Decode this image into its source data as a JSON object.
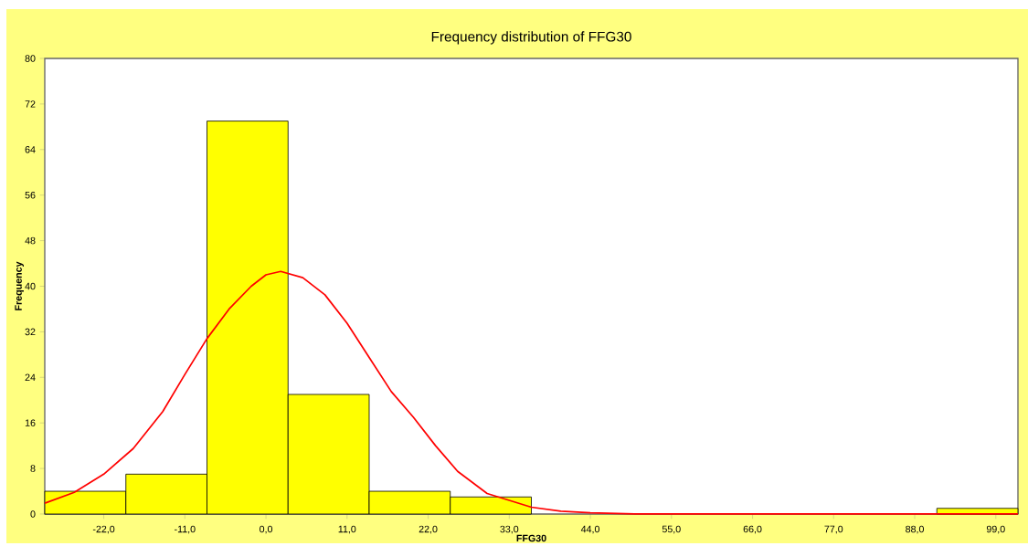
{
  "chart_data": {
    "type": "histogram",
    "title": "Frequency distribution of FFG30",
    "xlabel": "FFG30",
    "ylabel": "Frequency",
    "bins": [
      -30,
      -19,
      -8,
      3,
      14,
      25,
      36,
      47,
      58,
      69,
      80,
      91,
      102
    ],
    "values": [
      4,
      7,
      69,
      21,
      4,
      3,
      0,
      0,
      0,
      0,
      0,
      1
    ],
    "color": "#ffff00",
    "xlim": [
      -30,
      102
    ],
    "ylim": [
      0,
      80
    ],
    "xticks": [
      {
        "value": -22,
        "label": "-22,0"
      },
      {
        "value": -11,
        "label": "-11,0"
      },
      {
        "value": 0,
        "label": "0,0"
      },
      {
        "value": 11,
        "label": "11,0"
      },
      {
        "value": 22,
        "label": "22,0"
      },
      {
        "value": 33,
        "label": "33,0"
      },
      {
        "value": 44,
        "label": "44,0"
      },
      {
        "value": 55,
        "label": "55,0"
      },
      {
        "value": 66,
        "label": "66,0"
      },
      {
        "value": 77,
        "label": "77,0"
      },
      {
        "value": 88,
        "label": "88,0"
      },
      {
        "value": 99,
        "label": "99,0"
      }
    ],
    "yticks": [
      0,
      8,
      16,
      24,
      32,
      40,
      48,
      56,
      64,
      72,
      80
    ],
    "series": [
      {
        "type": "line",
        "color": "#ff0000",
        "x": [
          -30,
          -26,
          -22,
          -18,
          -14,
          -11,
          -8,
          -5,
          -2,
          0,
          2,
          5,
          8,
          11,
          14,
          17,
          20,
          23,
          26,
          30,
          33,
          36,
          40,
          44,
          50,
          60,
          80,
          102
        ],
        "values": [
          1.9,
          3.8,
          7,
          11.5,
          18,
          24.5,
          30.8,
          36,
          40,
          42,
          42.6,
          41.5,
          38.5,
          33.5,
          27.5,
          21.5,
          17,
          12,
          7.5,
          3.6,
          2.4,
          1.2,
          0.5,
          0.2,
          0,
          0,
          0,
          0
        ]
      }
    ]
  }
}
